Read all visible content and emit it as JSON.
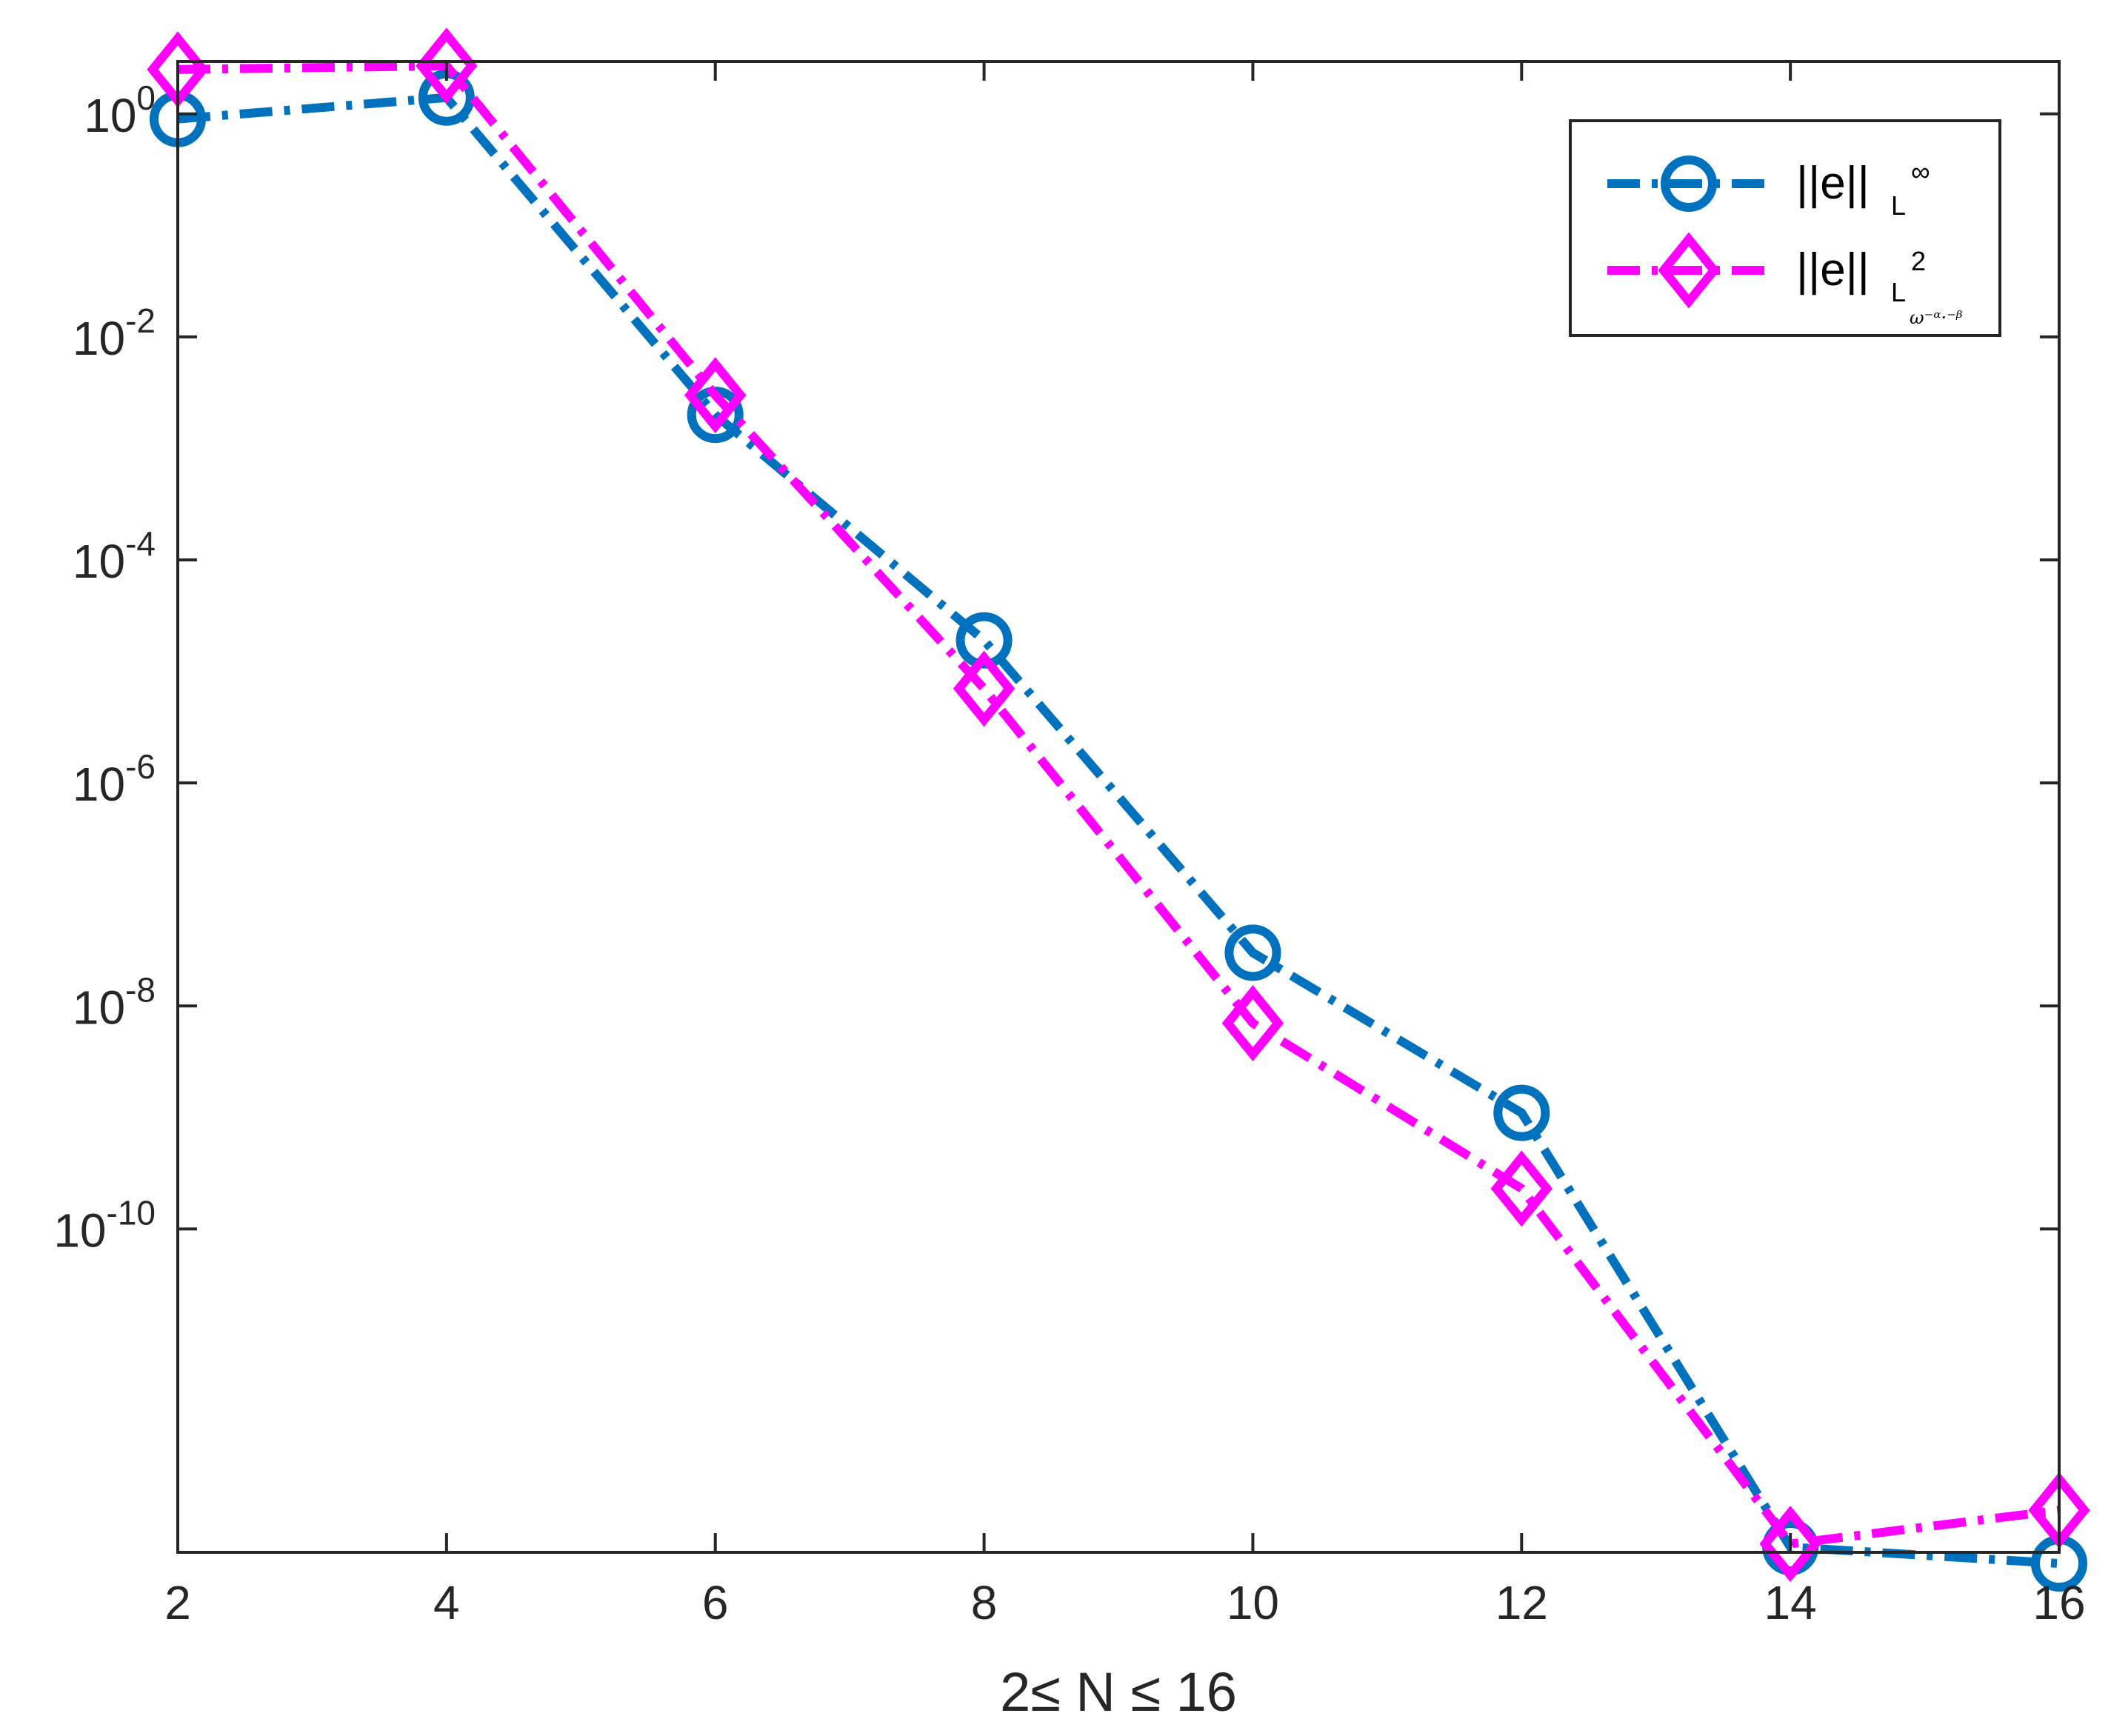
{
  "chart_data": {
    "type": "line",
    "xlabel": "2≤ N ≤ 16",
    "ylabel": "",
    "xlim": [
      2,
      16
    ],
    "ylim_log10": [
      -12.9,
      0.47
    ],
    "yscale": "log",
    "xticks": [
      2,
      4,
      6,
      8,
      10,
      12,
      14,
      16
    ],
    "yticks": [
      {
        "base": "10",
        "exp": "0",
        "value_log10": 0
      },
      {
        "base": "10",
        "exp": "-2",
        "value_log10": -2
      },
      {
        "base": "10",
        "exp": "-4",
        "value_log10": -4
      },
      {
        "base": "10",
        "exp": "-6",
        "value_log10": -6
      },
      {
        "base": "10",
        "exp": "-8",
        "value_log10": -8
      },
      {
        "base": "10",
        "exp": "-10",
        "value_log10": -10
      }
    ],
    "grid": false,
    "legend_position": "top-right",
    "series": [
      {
        "key": "linf",
        "legend_main": "||e||",
        "legend_sub": "L",
        "legend_sup": "∞",
        "legend_subsub": "",
        "color": "#0072BD",
        "marker": "circle",
        "line_style": "dash-dot",
        "x": [
          2,
          4,
          6,
          8,
          10,
          12,
          14,
          16
        ],
        "y": [
          0.9,
          1.4,
          0.002,
          1.9e-05,
          3e-08,
          1.1e-09,
          1.4e-13,
          1e-13
        ]
      },
      {
        "key": "l2",
        "legend_main": "||e||",
        "legend_sub": "L",
        "legend_sup": "2",
        "legend_subsub": "ω⁻ᵅ·⁻ᵝ",
        "color": "#FF00FF",
        "marker": "diamond",
        "line_style": "dash-dot",
        "x": [
          2,
          4,
          6,
          8,
          10,
          12,
          14,
          16
        ],
        "y": [
          2.5,
          2.7,
          0.003,
          7e-06,
          7e-09,
          2.3e-10,
          1.5e-13,
          3e-13
        ]
      }
    ]
  }
}
